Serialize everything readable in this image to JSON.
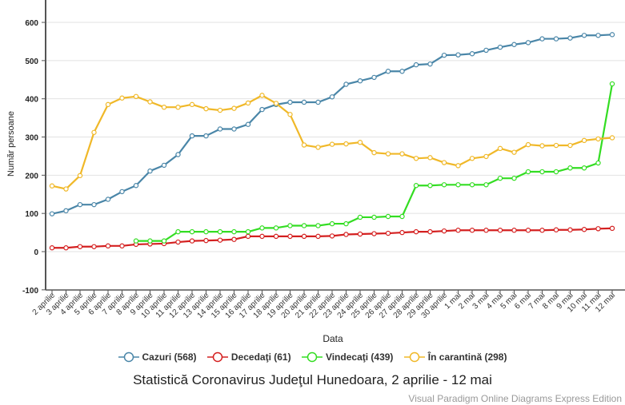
{
  "chart_data": {
    "type": "line",
    "title": "Statistică Coronavirus Judeţul Hunedoara, 2 aprilie - 12 mai",
    "xlabel": "Data",
    "ylabel": "Număr persoane",
    "ylim": [
      -100,
      650
    ],
    "yticks": [
      -100,
      0,
      100,
      200,
      300,
      400,
      500,
      600
    ],
    "grid": true,
    "legend": "bottom",
    "categories": [
      "2 aprilie",
      "3 aprilie",
      "4 aprilie",
      "5 aprilie",
      "6 aprilie",
      "7 aprilie",
      "8 aprilie",
      "9 aprilie",
      "10 aprilie",
      "11 aprilie",
      "12 aprilie",
      "13 aprilie",
      "14 aprilie",
      "15 aprilie",
      "16 aprilie",
      "17 aprilie",
      "18 aprilie",
      "19 aprilie",
      "20 aprilie",
      "21 aprilie",
      "22 aprilie",
      "23 aprilie",
      "24 aprilie",
      "25 aprilie",
      "26 aprilie",
      "27 aprilie",
      "28 aprilie",
      "29 aprilie",
      "30 aprilie",
      "1 mai",
      "2 mai",
      "3 mai",
      "4 mai",
      "5 mai",
      "6 mai",
      "7 mai",
      "8 mai",
      "9 mai",
      "10 mai",
      "11 mai",
      "12 mai"
    ],
    "series": [
      {
        "name": "Cazuri (568)",
        "color": "#4a86a8",
        "values": [
          99,
          107,
          123,
          123,
          137,
          157,
          173,
          211,
          226,
          254,
          303,
          303,
          321,
          321,
          333,
          372,
          385,
          391,
          391,
          391,
          405,
          438,
          447,
          456,
          472,
          472,
          489,
          491,
          514,
          515,
          518,
          527,
          535,
          542,
          547,
          557,
          557,
          559,
          566,
          566,
          568
        ]
      },
      {
        "name": "Decedaţi (61)",
        "color": "#d42020",
        "values": [
          10,
          10,
          13,
          13,
          15,
          15,
          19,
          20,
          21,
          25,
          28,
          29,
          30,
          32,
          40,
          40,
          40,
          40,
          40,
          40,
          41,
          45,
          46,
          47,
          48,
          50,
          52,
          52,
          54,
          56,
          56,
          56,
          56,
          56,
          56,
          56,
          57,
          57,
          58,
          60,
          61
        ]
      },
      {
        "name": "Vindecaţi (439)",
        "color": "#33dd22",
        "values": [
          null,
          null,
          null,
          null,
          null,
          null,
          28,
          28,
          28,
          52,
          52,
          52,
          52,
          52,
          52,
          62,
          62,
          68,
          68,
          68,
          73,
          73,
          90,
          90,
          92,
          92,
          173,
          173,
          175,
          175,
          175,
          175,
          192,
          192,
          209,
          209,
          209,
          219,
          219,
          232,
          439
        ]
      },
      {
        "name": "În carantină (298)",
        "color": "#f0b828",
        "values": [
          172,
          164,
          199,
          312,
          385,
          402,
          406,
          392,
          378,
          378,
          385,
          374,
          370,
          375,
          389,
          409,
          388,
          359,
          279,
          273,
          281,
          282,
          286,
          259,
          256,
          256,
          244,
          246,
          233,
          225,
          244,
          249,
          270,
          260,
          280,
          277,
          278,
          278,
          291,
          295,
          298
        ]
      }
    ]
  },
  "watermark": "Visual Paradigm Online Diagrams Express Edition"
}
